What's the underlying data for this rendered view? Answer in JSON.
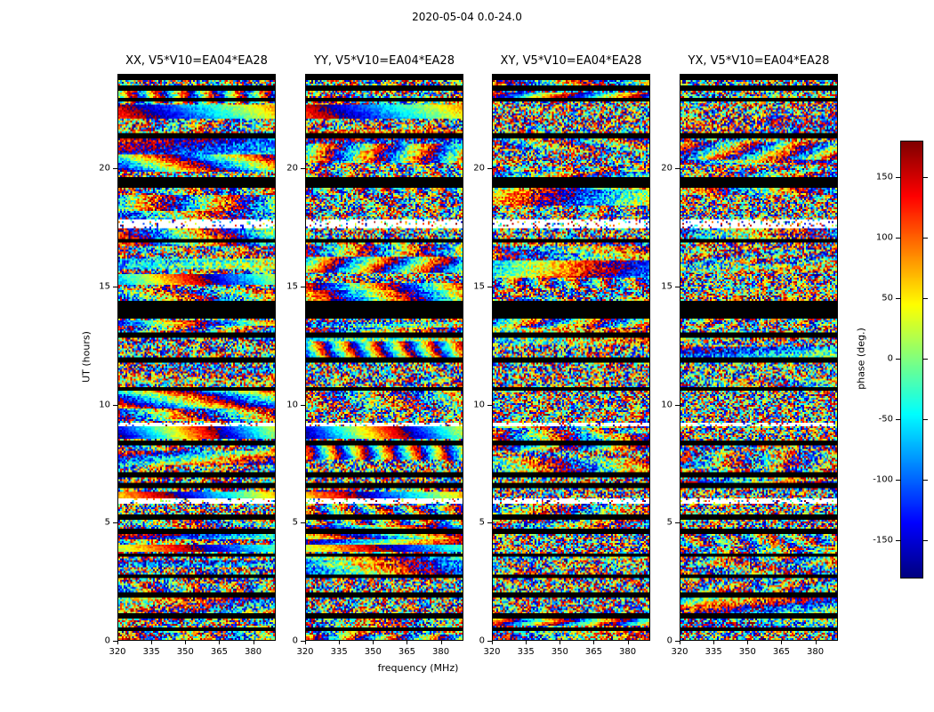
{
  "chart_data": {
    "type": "heatmap",
    "title": "2020-05-04 0.0-24.0",
    "xlabel": "frequency (MHz)",
    "ylabel": "UT (hours)",
    "xlim": [
      320,
      390
    ],
    "ylim": [
      0,
      24
    ],
    "x_ticks": [
      320,
      335,
      350,
      365,
      380
    ],
    "y_ticks": [
      0,
      5,
      10,
      15,
      20
    ],
    "colormap": "jet",
    "grid": {
      "cols": 90,
      "rows": 320
    },
    "panels": [
      {
        "id": "XX",
        "title": "XX, V5*V10=EA04*EA28",
        "seed": 11,
        "coherence": 0.45
      },
      {
        "id": "YY",
        "title": "YY, V5*V10=EA04*EA28",
        "seed": 23,
        "coherence": 0.45
      },
      {
        "id": "XY",
        "title": "XY, V5*V10=EA04*EA28",
        "seed": 37,
        "coherence": 0.22
      },
      {
        "id": "YX",
        "title": "YX, V5*V10=EA04*EA28",
        "seed": 53,
        "coherence": 0.22
      }
    ],
    "colorbar": {
      "label": "phase (deg.)",
      "ticks": [
        150,
        100,
        50,
        0,
        -50,
        -100,
        -150
      ],
      "vmin": -180,
      "vmax": 180
    },
    "features": {
      "black_rows_ut": [
        23.9,
        23.45,
        22.95,
        21.4,
        19.55,
        19.3,
        16.95,
        14.3,
        14.15,
        14.0,
        13.75,
        12.95,
        11.9,
        10.65,
        8.35,
        7.0,
        6.55,
        5.2,
        4.6,
        3.6,
        2.7,
        1.9,
        1.0,
        0.45
      ],
      "black_row_halfwidth": 0.09,
      "white_rows_ut": [
        17.75,
        17.55,
        9.15,
        5.9
      ],
      "white_row_halfwidth": 0.09,
      "smooth_rows": [
        {
          "ut": 22.45,
          "halfwidth": 0.3,
          "panels": [
            0,
            1
          ],
          "cycles": 0.8,
          "offset": 140
        },
        {
          "ut": 15.3,
          "halfwidth": 0.2,
          "panels": [
            0
          ],
          "cycles": 1.2,
          "offset": -60
        },
        {
          "ut": 8.8,
          "halfwidth": 0.25,
          "panels": [
            0,
            1
          ],
          "cycles": 1.5,
          "offset": -160
        },
        {
          "ut": 6.1,
          "halfwidth": 0.2,
          "panels": [
            0,
            1
          ],
          "cycles": 1.0,
          "offset": 60
        },
        {
          "ut": 3.9,
          "halfwidth": 0.18,
          "panels": [
            0,
            1
          ],
          "cycles": 0.9,
          "offset": 20
        }
      ]
    },
    "note": "interferometric visibility phase (deg.) vs frequency and UT; noise-like phases, black rows = flagged, white rows = missing data"
  }
}
